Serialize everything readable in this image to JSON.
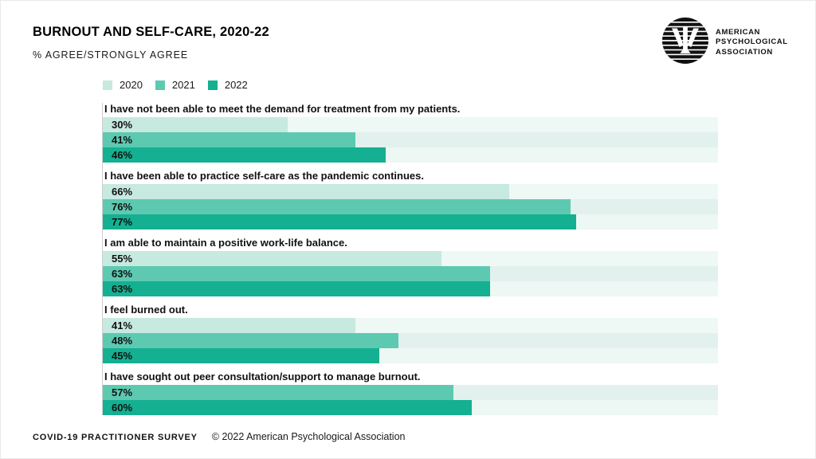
{
  "page": {
    "title": "BURNOUT AND SELF-CARE, 2020-22",
    "subtitle": "% AGREE/STRONGLY AGREE",
    "logo": {
      "icon": "apa-psi-logo",
      "org_lines": [
        "AMERICAN",
        "PSYCHOLOGICAL",
        "ASSOCIATION"
      ]
    },
    "footer": {
      "survey": "COVID-19 PRACTITIONER SURVEY",
      "copyright": "© 2022 American Psychological Association"
    }
  },
  "chart_data": {
    "type": "bar",
    "orientation": "horizontal",
    "title": "BURNOUT AND SELF-CARE, 2020-22",
    "subtitle": "% AGREE/STRONGLY AGREE",
    "unit": "%",
    "xlim": [
      0,
      100
    ],
    "grid": false,
    "legend_position": "top-left",
    "legend": [
      "2020",
      "2021",
      "2022"
    ],
    "series_colors": {
      "2020": "#c6e9e0",
      "2021": "#5dc9b1",
      "2022": "#14b091"
    },
    "track_colors": {
      "2020": "#eef8f5",
      "2021": "#e2f1ed",
      "2022": "#edf7f3"
    },
    "categories": [
      "I have not been able to meet the demand for treatment from my patients.",
      "I have been able to practice self-care as the pandemic continues.",
      "I am able to maintain a positive work-life balance.",
      "I feel burned out.",
      "I have sought out peer consultation/support to manage burnout."
    ],
    "series": [
      {
        "name": "2020",
        "values": [
          30,
          66,
          55,
          41,
          null
        ]
      },
      {
        "name": "2021",
        "values": [
          41,
          76,
          63,
          48,
          57
        ]
      },
      {
        "name": "2022",
        "values": [
          46,
          77,
          63,
          45,
          60
        ]
      }
    ]
  }
}
